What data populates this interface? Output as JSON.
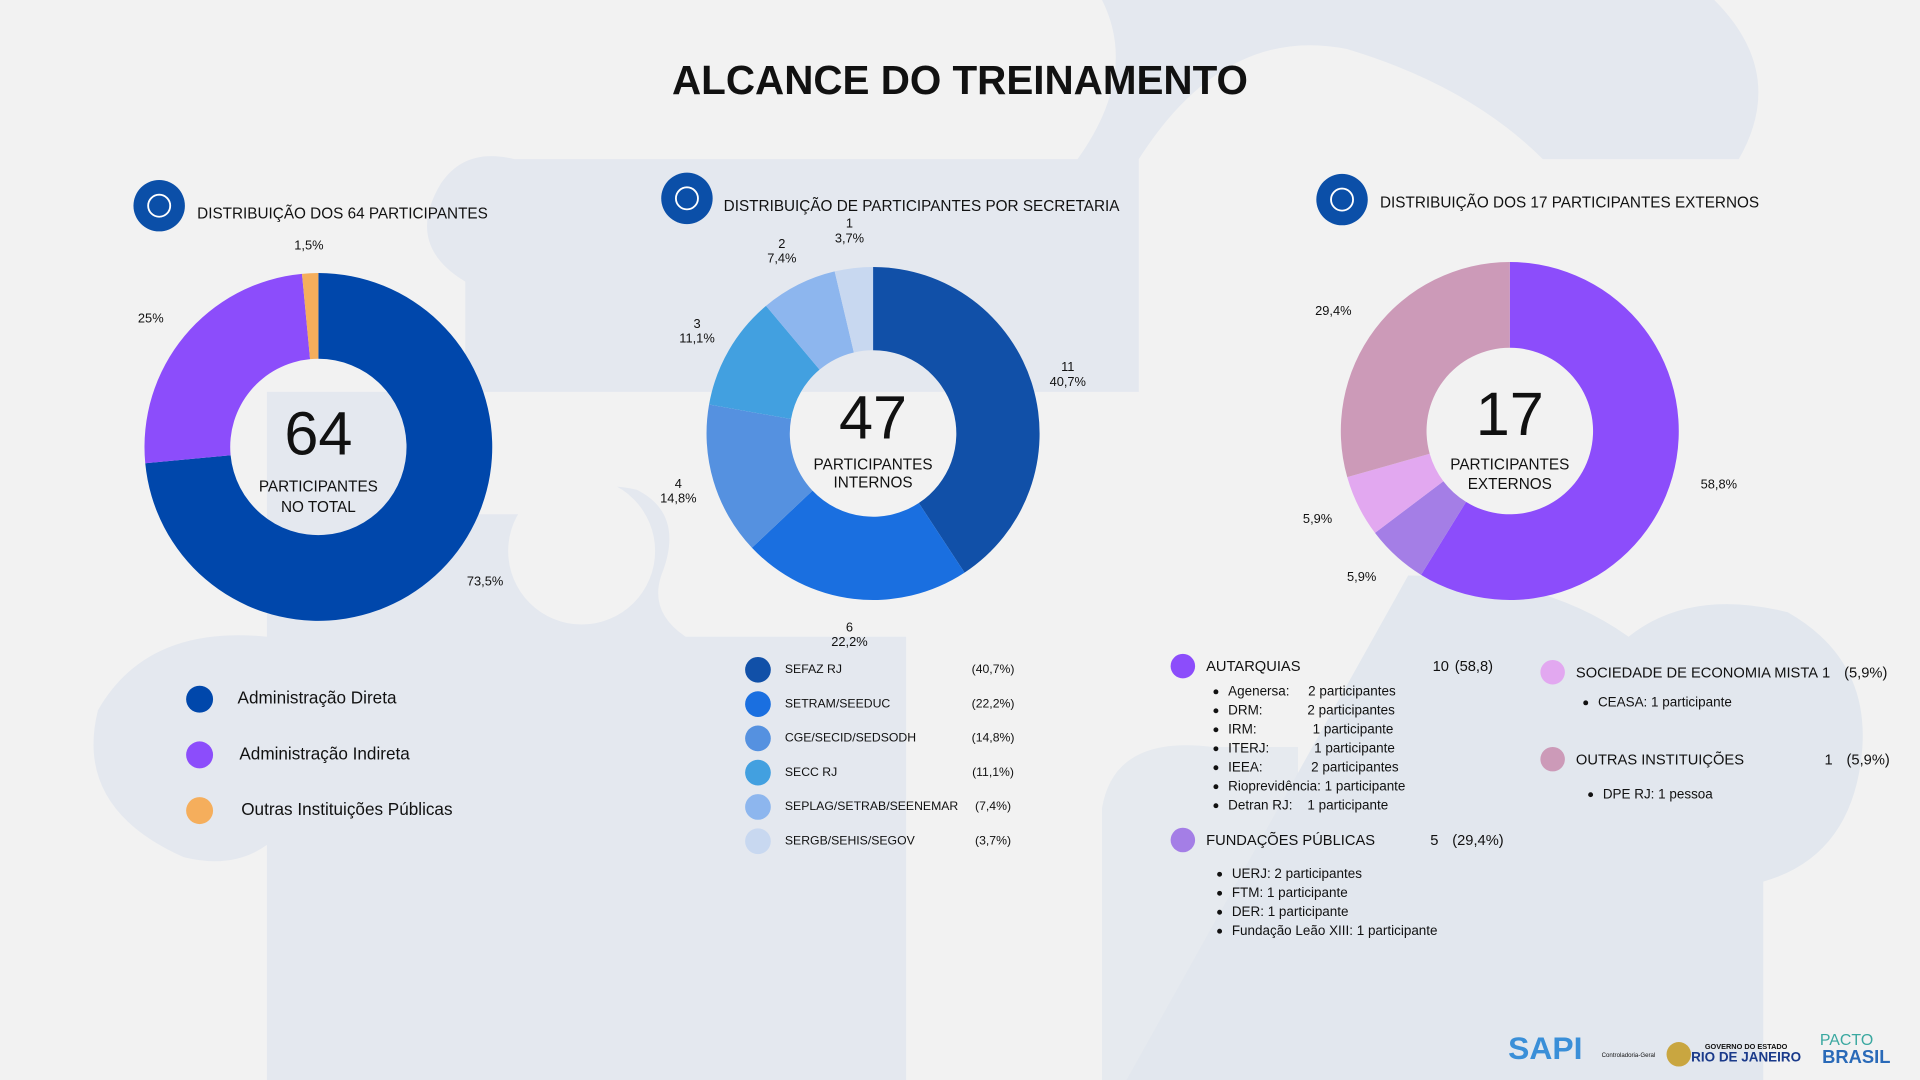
{
  "title": "ALCANCE DO TREINAMENTO",
  "chart_data": [
    {
      "type": "pie",
      "title": "DISTRIBUIÇÃO DOS 64 PARTICIPANTES",
      "center_value": 64,
      "center_label": [
        "PARTICIPANTES",
        "NO TOTAL"
      ],
      "categories": [
        "Administração Direta",
        "Administração Indireta",
        "Outras  Instituições Públicas"
      ],
      "values": [
        73.5,
        25,
        1.5
      ],
      "value_labels": [
        "73,5%",
        "25%",
        "1,5%"
      ],
      "colors": [
        "#0047ab",
        "#8c4dfb",
        "#f5ae5c"
      ]
    },
    {
      "type": "pie",
      "title": "DISTRIBUIÇÃO DE PARTICIPANTES POR SECRETARIA",
      "center_value": 47,
      "center_label": [
        "PARTICIPANTES",
        "INTERNOS"
      ],
      "categories": [
        "SEFAZ RJ",
        "SETRAM/SEEDUC",
        "CGE/SECID/SEDSODH",
        "SECC RJ",
        "SEPLAG/SETRAB/SEENEMAR",
        "SERGB/SEHIS/SEGOV"
      ],
      "values": [
        11,
        6,
        4,
        3,
        2,
        1
      ],
      "percent_labels": [
        "40,7%",
        "22,2%",
        "14,8%",
        "11,1%",
        "7,4%",
        "3,7%"
      ],
      "legend_labels": [
        "(40,7%)",
        "(22,2%)",
        "(14,8%)",
        "(11,1%)",
        "(7,4%)",
        "(3,7%)"
      ],
      "colors": [
        "#1150a8",
        "#1a6fe0",
        "#5591e0",
        "#42a0e0",
        "#8db6ee",
        "#c8d8f0"
      ]
    },
    {
      "type": "pie",
      "title": "DISTRIBUIÇÃO DOS 17 PARTICIPANTES EXTERNOS",
      "center_value": 17,
      "center_label": [
        "PARTICIPANTES",
        "EXTERNOS"
      ],
      "values": [
        58.8,
        5.9,
        5.9,
        29.4
      ],
      "value_labels": [
        "58,8%",
        "5,9%",
        "5,9%",
        "29,4%"
      ],
      "colors": [
        "#8c4dfb",
        "#a47ee6",
        "#e2a8f0",
        "#cc9ab8"
      ]
    }
  ],
  "external_groups": [
    {
      "name": "AUTARQUIAS",
      "count": 10,
      "share_label": "(58,8)",
      "color": "#8c4dfb",
      "items": [
        "Agenersa:     2 participantes",
        "DRM:            2 participantes",
        "IRM:               1 participante",
        "ITERJ:            1 participante",
        "IEEA:             2 participantes",
        "Rioprevidência: 1 participante",
        "Detran RJ:    1 participante"
      ]
    },
    {
      "name": "FUNDAÇÕES PÚBLICAS",
      "count": 5,
      "share_label": "(29,4%)",
      "color": "#a47ee6",
      "items": [
        "UERJ: 2 participantes",
        "FTM: 1 participante",
        "DER: 1 participante",
        "Fundação Leão XIII: 1 participante"
      ]
    },
    {
      "name": "SOCIEDADE DE ECONOMIA MISTA",
      "count": 1,
      "share_label": "(5,9%)",
      "color": "#e2a8f0",
      "items": [
        "CEASA: 1 participante"
      ]
    },
    {
      "name": "OUTRAS INSTITUIÇÕES",
      "count": 1,
      "share_label": "(5,9%)",
      "color": "#cc9ab8",
      "items": [
        "DPE RJ: 1 pessoa"
      ]
    }
  ],
  "footer": {
    "sapi": "SAPI",
    "cge": "Controladoria-Geral",
    "gov_top": "GOVERNO DO ESTADO",
    "gov_main": "RIO DE JANEIRO",
    "pacto": "PACTO",
    "brasil": "BRASIL"
  }
}
